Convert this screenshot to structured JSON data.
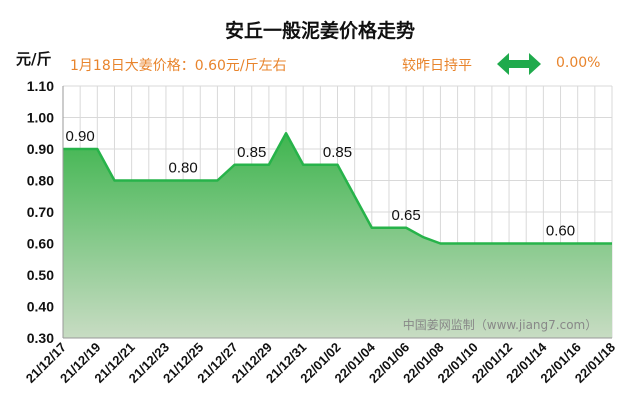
{
  "unit_label": "元/斤",
  "info": {
    "price_text": "1月18日大姜价格：0.60元/斤左右",
    "compare_text": "较昨日持平",
    "change_text": "0.00%"
  },
  "colors": {
    "line": "#27b34a",
    "fill_top": "#3fb54f",
    "fill_bottom": "#c8dcc3",
    "accent": "#e8842c",
    "arrow": "#1faa4c",
    "grid": "#d9d9d9"
  },
  "icons": {
    "change_indicator": "double-arrow-flat-icon"
  },
  "chart_data": {
    "type": "area",
    "title": "安丘一般泥姜价格走势",
    "xlabel": "",
    "ylabel": "元/斤",
    "ylim": [
      0.3,
      1.1
    ],
    "yticks": [
      "0.30",
      "0.40",
      "0.50",
      "0.60",
      "0.70",
      "0.80",
      "0.90",
      "1.00",
      "1.10"
    ],
    "categories": [
      "21/12/17",
      "21/12/18",
      "21/12/19",
      "21/12/20",
      "21/12/21",
      "21/12/22",
      "21/12/23",
      "21/12/24",
      "21/12/25",
      "21/12/26",
      "21/12/27",
      "21/12/28",
      "21/12/29",
      "21/12/30",
      "21/12/31",
      "22/01/01",
      "22/01/02",
      "22/01/03",
      "22/01/04",
      "22/01/05",
      "22/01/06",
      "22/01/07",
      "22/01/08",
      "22/01/09",
      "22/01/10",
      "22/01/11",
      "22/01/12",
      "22/01/13",
      "22/01/14",
      "22/01/15",
      "22/01/16",
      "22/01/17",
      "22/01/18"
    ],
    "tick_labels": [
      "21/12/17",
      "21/12/19",
      "21/12/21",
      "21/12/23",
      "21/12/25",
      "21/12/27",
      "21/12/29",
      "21/12/31",
      "22/01/02",
      "22/01/04",
      "22/01/06",
      "22/01/08",
      "22/01/10",
      "22/01/12",
      "22/01/14",
      "22/01/16",
      "22/01/18"
    ],
    "series": [
      {
        "values": [
          0.9,
          0.9,
          0.9,
          0.8,
          0.8,
          0.8,
          0.8,
          0.8,
          0.8,
          0.8,
          0.85,
          0.85,
          0.85,
          0.95,
          0.85,
          0.85,
          0.85,
          0.75,
          0.65,
          0.65,
          0.65,
          0.62,
          0.6,
          0.6,
          0.6,
          0.6,
          0.6,
          0.6,
          0.6,
          0.6,
          0.6,
          0.6,
          0.6
        ]
      }
    ],
    "data_labels": [
      {
        "index": 1,
        "text": "0.90"
      },
      {
        "index": 7,
        "text": "0.80"
      },
      {
        "index": 11,
        "text": "0.85"
      },
      {
        "index": 16,
        "text": "0.85"
      },
      {
        "index": 20,
        "text": "0.65"
      },
      {
        "index": 29,
        "text": "0.60"
      }
    ],
    "watermark": "中国姜网监制（www.jiang7.com）",
    "grid": true,
    "legend": "none"
  }
}
